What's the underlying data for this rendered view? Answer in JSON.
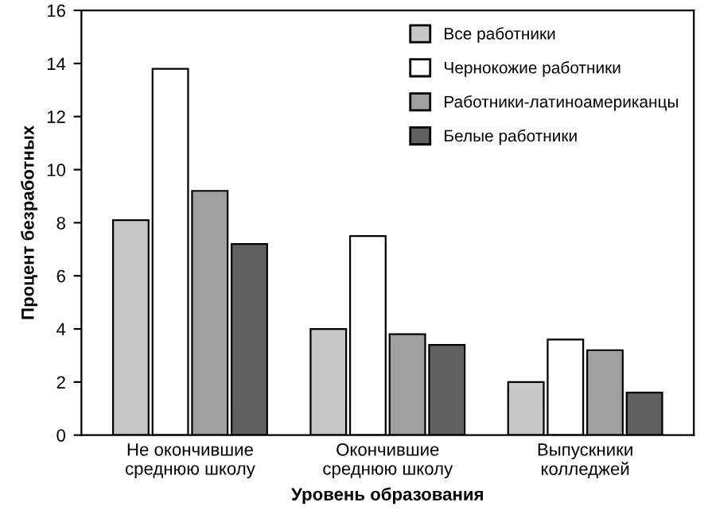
{
  "chart_data": {
    "type": "bar",
    "xlabel": "Уровень образования",
    "ylabel": "Процент безработных",
    "categories": [
      "Не окончившие\nсреднюю школу",
      "Окончившие\nсреднюю школу",
      "Выпускники\nколледжей"
    ],
    "series": [
      {
        "name": "Все работники",
        "color": "#c8c8c8",
        "values": [
          8.1,
          4.0,
          2.0
        ]
      },
      {
        "name": "Чернокожие работники",
        "color": "#ffffff",
        "values": [
          13.8,
          7.5,
          3.6
        ]
      },
      {
        "name": "Работники-латиноамериканцы",
        "color": "#a0a0a0",
        "values": [
          9.2,
          3.8,
          3.2
        ]
      },
      {
        "name": "Белые работники",
        "color": "#606060",
        "values": [
          7.2,
          3.4,
          1.6
        ]
      }
    ],
    "ylim": [
      0,
      16
    ],
    "yticks": [
      0,
      2,
      4,
      6,
      8,
      10,
      12,
      14,
      16
    ],
    "grid": false,
    "legend": "top right"
  }
}
